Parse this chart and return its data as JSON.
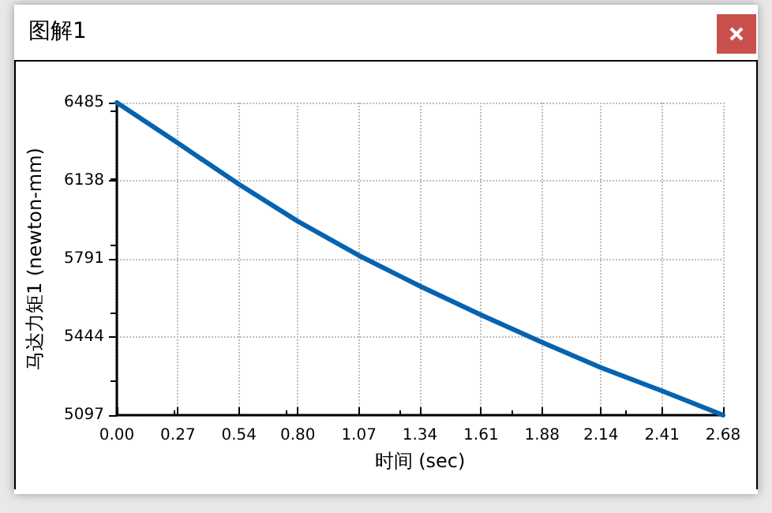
{
  "chart_data": {
    "type": "line",
    "title": "图解1",
    "xlabel": "时间 (sec)",
    "ylabel": "马达力矩1 (newton-mm)",
    "x": [
      0,
      0.27,
      0.54,
      0.8,
      1.07,
      1.34,
      1.61,
      1.88,
      2.14,
      2.41,
      2.68
    ],
    "series": [
      {
        "color": "#0563b0",
        "values": [
          6485,
          6305,
          6122,
          5958,
          5806,
          5670,
          5542,
          5420,
          5308,
          5205,
          5097
        ]
      }
    ],
    "xlim": [
      0,
      2.68
    ],
    "xticks": [
      {
        "value": 0,
        "label": "0.00"
      },
      {
        "value": 0.27,
        "label": "0.27"
      },
      {
        "value": 0.54,
        "label": "0.54"
      },
      {
        "value": 0.8,
        "label": "0.80"
      },
      {
        "value": 1.07,
        "label": "1.07"
      },
      {
        "value": 1.34,
        "label": "1.34"
      },
      {
        "value": 1.61,
        "label": "1.61"
      },
      {
        "value": 1.88,
        "label": "1.88"
      },
      {
        "value": 2.14,
        "label": "2.14"
      },
      {
        "value": 2.41,
        "label": "2.41"
      },
      {
        "value": 2.68,
        "label": "2.68"
      }
    ],
    "ylim": [
      5097,
      6485
    ],
    "yticks": [
      5097,
      5444,
      5791,
      6138,
      6485
    ],
    "grid": true,
    "marker": "none",
    "line_style": "solid"
  }
}
